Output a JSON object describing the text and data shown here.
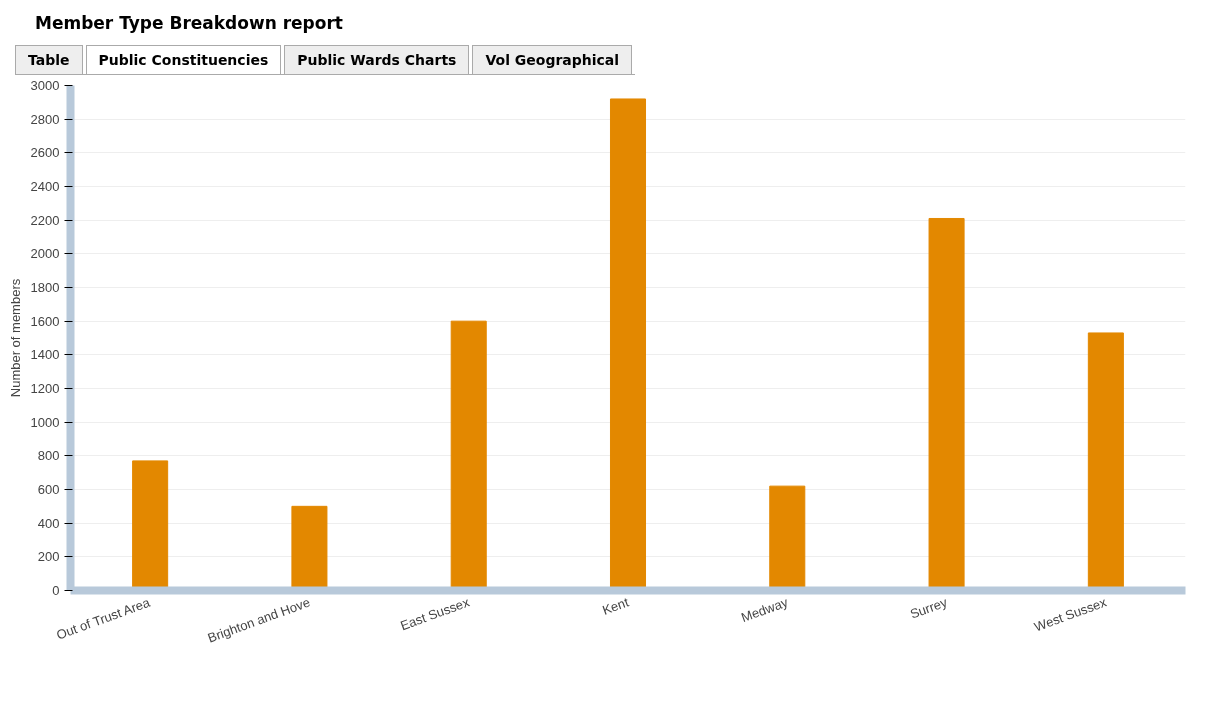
{
  "chart_data": {
    "type": "bar",
    "title": "Member Type Breakdown report",
    "annotations": [
      "Table",
      "Public Constituencies",
      "Public Wards Charts",
      "Vol Geographical"
    ],
    "ylabel": "Number of members",
    "categories": [
      "Out of Trust Area",
      "Brighton and Hove",
      "East Sussex",
      "Kent",
      "Medway",
      "Surrey",
      "West Sussex"
    ],
    "values": [
      770,
      500,
      1600,
      2920,
      620,
      2210,
      1530
    ],
    "color": "#e38800",
    "ylim": [
      0,
      3000
    ],
    "yticks": [
      0,
      200,
      400,
      600,
      800,
      1000,
      1200,
      1400,
      1600,
      1800,
      2000,
      2200,
      2400,
      2600,
      2800,
      3000
    ],
    "grid": "y"
  }
}
